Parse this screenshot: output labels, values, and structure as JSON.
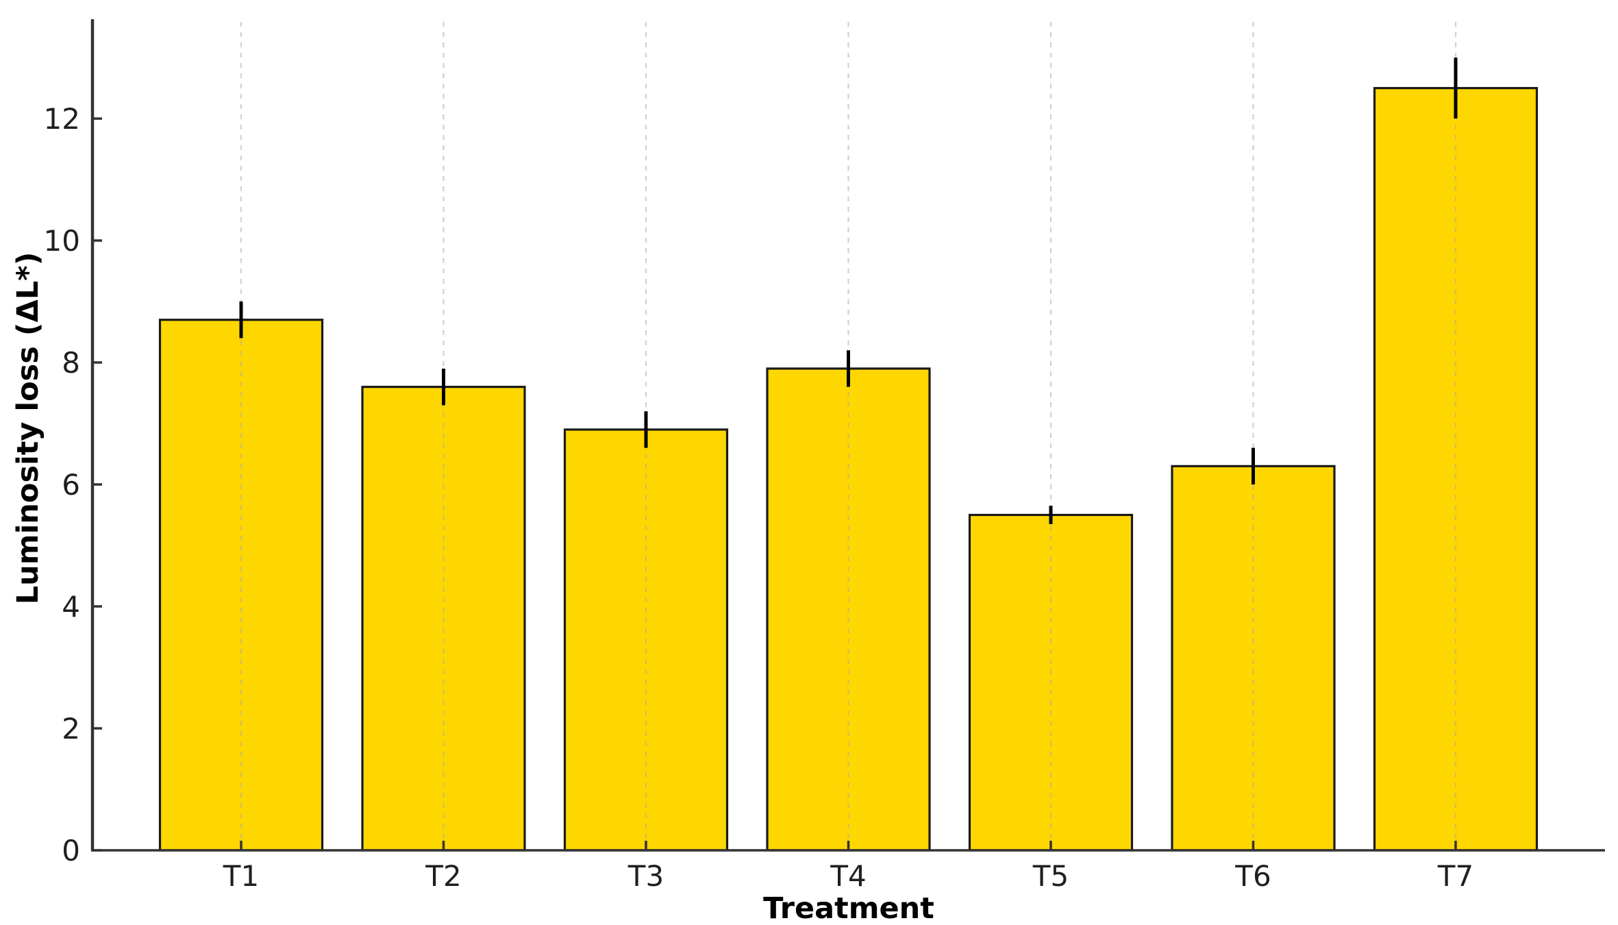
{
  "chart_data": {
    "type": "bar",
    "title": "",
    "xlabel": "Treatment",
    "ylabel": "Luminosity loss (ΔL*)",
    "categories": [
      "T1",
      "T2",
      "T3",
      "T4",
      "T5",
      "T6",
      "T7"
    ],
    "values": [
      8.7,
      7.6,
      6.9,
      7.9,
      5.5,
      6.3,
      12.5
    ],
    "errors": [
      0.3,
      0.3,
      0.3,
      0.3,
      0.15,
      0.3,
      0.5
    ],
    "yticks": [
      "0",
      "2",
      "4",
      "6",
      "8",
      "10",
      "12"
    ],
    "ylim": [
      0,
      13.63
    ],
    "grid": "vertical-dashed-at-bar-centers",
    "legend_position": "none",
    "bar_color": "#FFD700",
    "bar_edge_color": "#1a1a1a",
    "error_bar_color": "#000000",
    "grid_color": "#aaaaaa",
    "axis_color": "#333333",
    "text_color": "#1f1f1f"
  }
}
